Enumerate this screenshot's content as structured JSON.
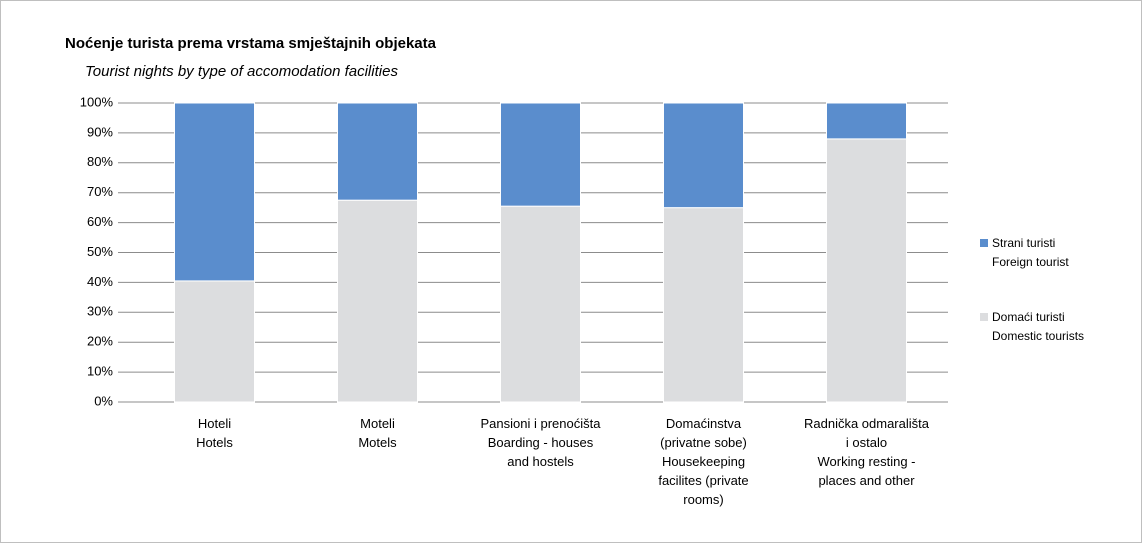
{
  "chart_data": {
    "type": "stacked_bar",
    "title": "Noćenje turista prema vrstama smještajnih objekata",
    "subtitle": "Tourist nights by type of accomodation facilities",
    "categories": [
      "Hoteli\nHotels",
      "Moteli\nMotels",
      "Pansioni  i  prenoćišta\nBoarding - houses\nand hostels",
      "Domaćinstva\n(privatne sobe)\nHousekeeping\nfacilites (private\nrooms)",
      "Radnička odmarališta\ni ostalo\nWorking resting -\nplaces and other"
    ],
    "series": [
      {
        "name": "Domaći turisti\nDomestic tourists",
        "color": "#dcdddf",
        "values": [
          40.5,
          67.5,
          65.5,
          65,
          88
        ]
      },
      {
        "name": "Strani turisti\nForeign tourist",
        "color": "#5a8dcd",
        "values": [
          59.5,
          32.5,
          34.5,
          35,
          12
        ]
      }
    ],
    "ylim": [
      0,
      100
    ],
    "yticks": [
      {
        "value": 0,
        "label": "0%"
      },
      {
        "value": 10,
        "label": "10%"
      },
      {
        "value": 20,
        "label": "20%"
      },
      {
        "value": 30,
        "label": "30%"
      },
      {
        "value": 40,
        "label": "40%"
      },
      {
        "value": 50,
        "label": "50%"
      },
      {
        "value": 60,
        "label": "60%"
      },
      {
        "value": 70,
        "label": "70%"
      },
      {
        "value": 80,
        "label": "80%"
      },
      {
        "value": 90,
        "label": "90%"
      },
      {
        "value": 100,
        "label": "100%"
      }
    ],
    "grid": true,
    "legend": "right"
  }
}
